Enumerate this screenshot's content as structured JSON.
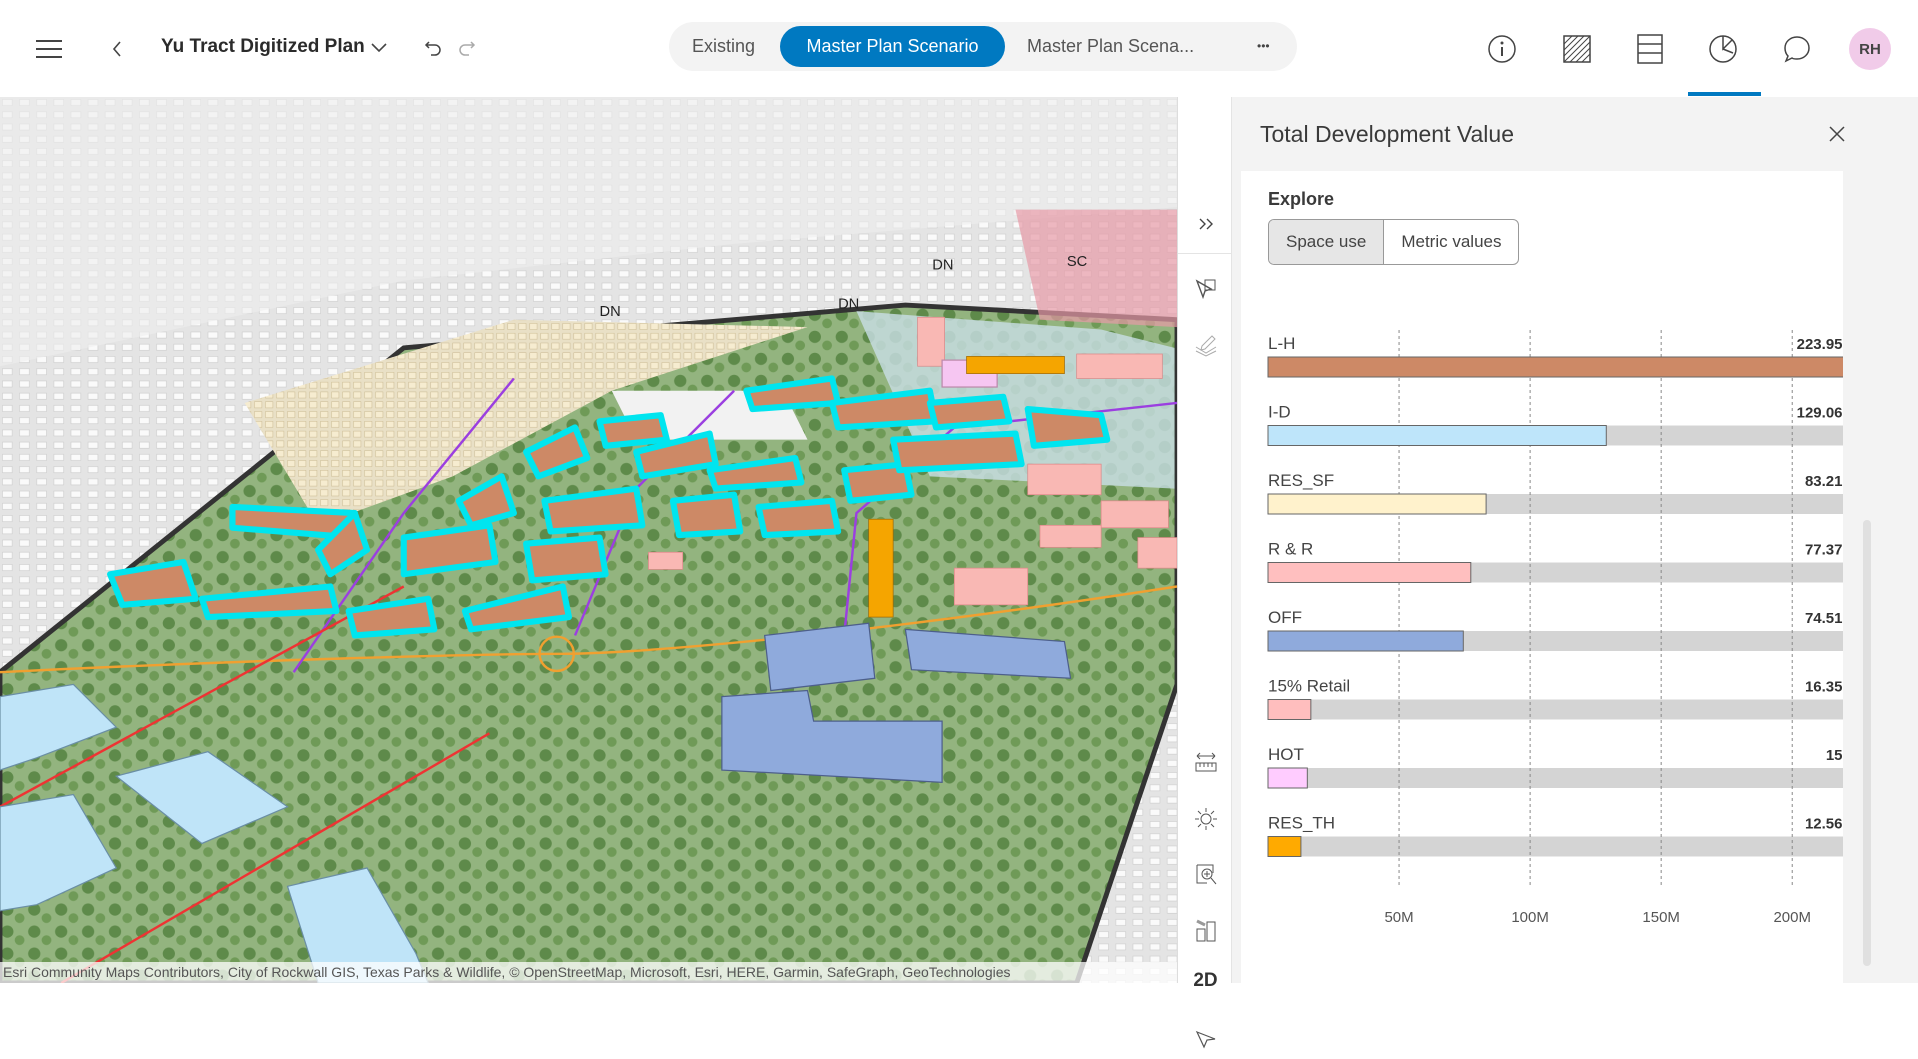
{
  "header": {
    "title": "Yu Tract Digitized Plan",
    "tabs": [
      {
        "label": "Existing"
      },
      {
        "label": "Master Plan Scenario",
        "active": true
      },
      {
        "label": "Master Plan Scena..."
      }
    ],
    "more_label": "•••",
    "avatar_initials": "RH",
    "icons": [
      "menu-icon",
      "back-icon",
      "chevron-down-icon",
      "undo-icon",
      "redo-icon",
      "info-icon",
      "hatch-icon",
      "table-icon",
      "pie-chart-icon",
      "comment-icon"
    ],
    "accent": "#0079c1"
  },
  "toolstrip": {
    "mode_2d": "2D",
    "icons": [
      "collapse-icon",
      "select-icon",
      "layers-edit-icon",
      "measure-icon",
      "daylight-icon",
      "zoom-area-icon",
      "buildings-icon",
      "navigate-icon"
    ]
  },
  "map": {
    "labels": [
      "DN",
      "DN",
      "DN",
      "SC"
    ],
    "attribution": "Esri Community Maps Contributors, City of Rockwall GIS, Texas Parks & Wildlife, © OpenStreetMap, Microsoft, Esri, HERE, Garmin, SafeGraph, GeoTechnologies"
  },
  "panel": {
    "title": "Total Development Value",
    "explore_label": "Explore",
    "segments": [
      {
        "label": "Space use",
        "selected": true
      },
      {
        "label": "Metric values"
      }
    ]
  },
  "chart_data": {
    "type": "bar",
    "orientation": "horizontal",
    "categories": [
      "L-H",
      "I-D",
      "RES_SF",
      "R & R",
      "OFF",
      "15% Retail",
      "HOT",
      "RES_TH"
    ],
    "values": [
      223.95,
      129.06,
      83.21,
      77.37,
      74.51,
      16.35,
      15,
      12.56
    ],
    "value_labels": [
      "223.95M",
      "129.06M",
      "83.21M",
      "77.37M",
      "74.51M",
      "16.35M",
      "15M",
      "12.56M"
    ],
    "colors": [
      "#cd8966",
      "#bee5fa",
      "#fff2cc",
      "#ffbfbf",
      "#8faadc",
      "#ffbebe",
      "#ffccff",
      "#ffaa00"
    ],
    "unit": "M",
    "xticks": [
      50,
      100,
      150,
      200
    ],
    "xtick_labels": [
      "50M",
      "100M",
      "150M",
      "200M"
    ],
    "xlim": [
      0,
      223.95
    ],
    "grid": "vertical-dashed"
  }
}
